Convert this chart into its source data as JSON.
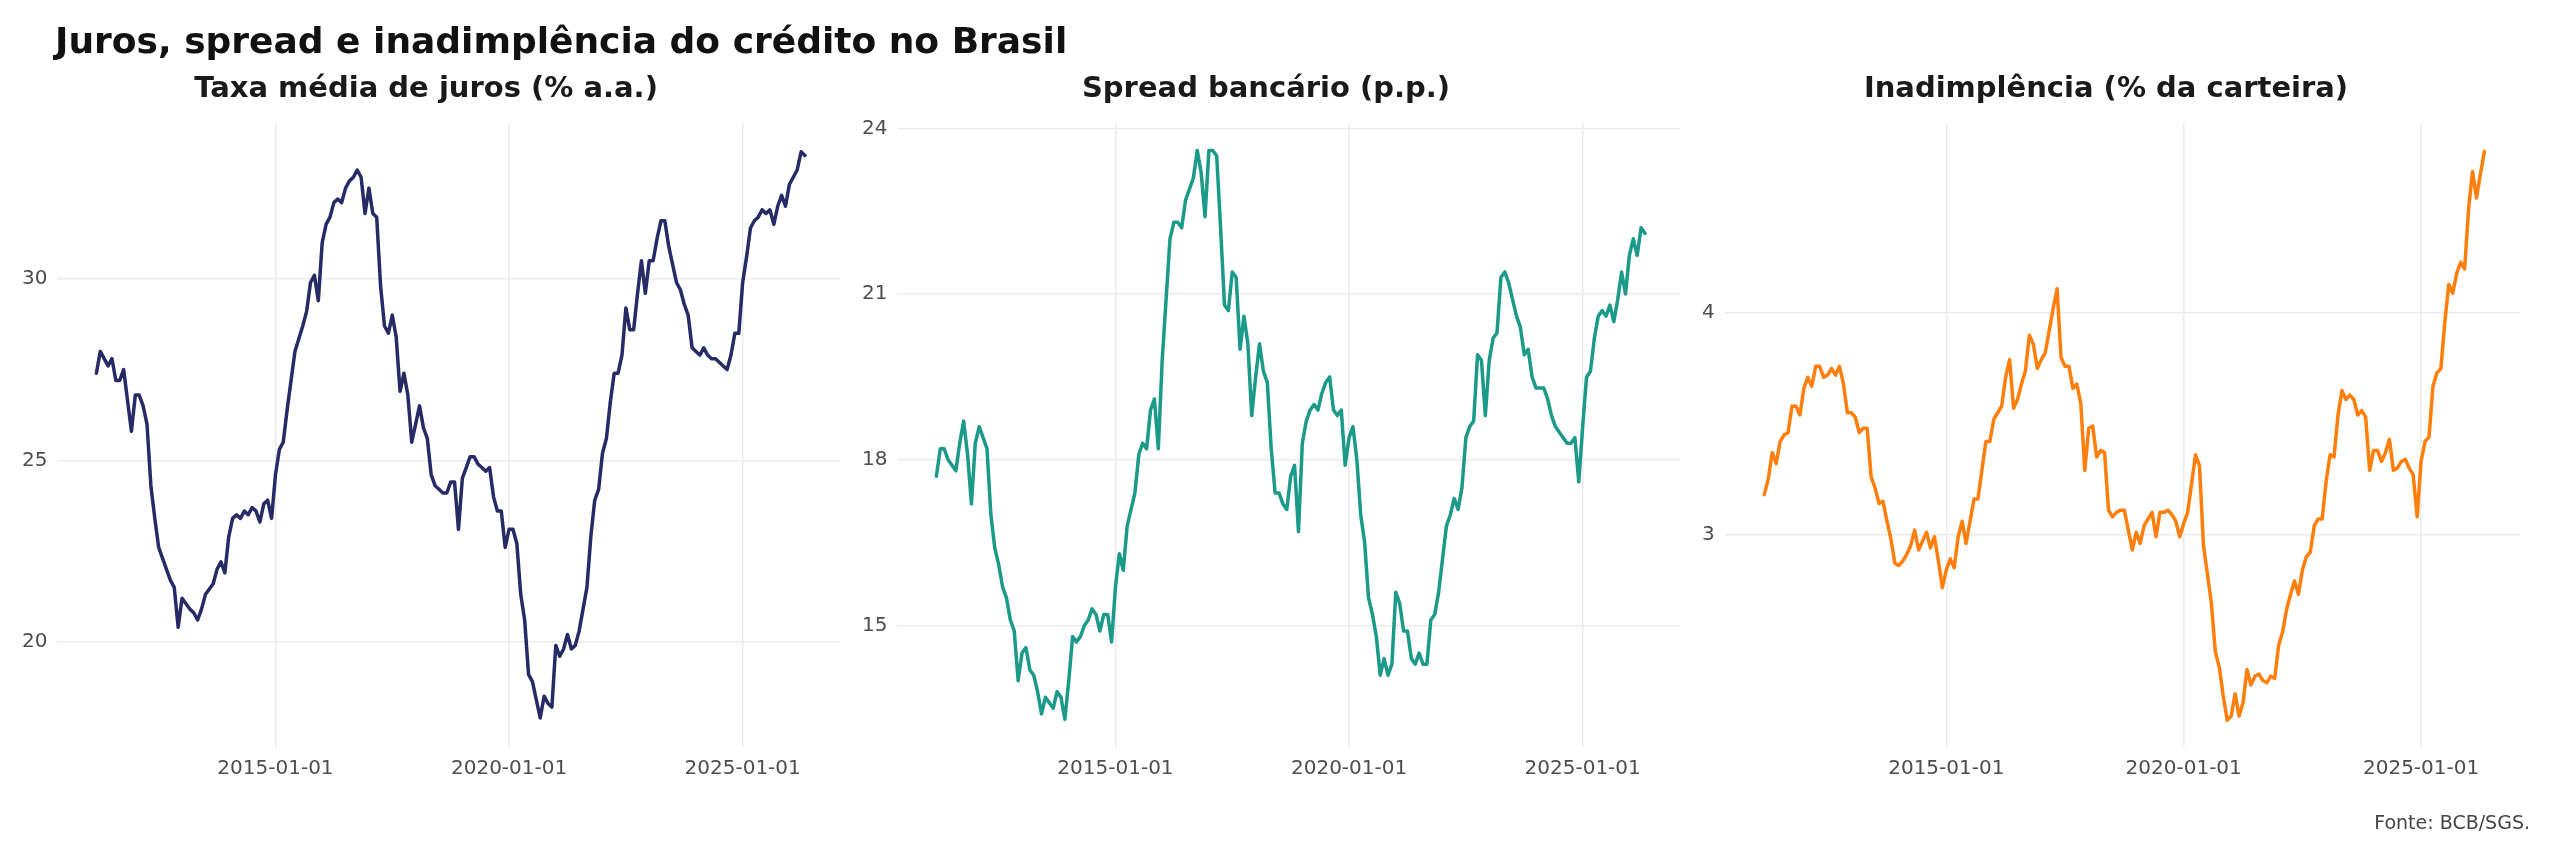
{
  "chart_data": [
    {
      "type": "line",
      "title": "Taxa média de juros (% a.a.)",
      "annotations": [
        "Juros, spread e inadimplência do crédito no Brasil"
      ],
      "xlim": [
        "2010-05",
        "2027-02"
      ],
      "xticks": [
        "2015-01-01",
        "2020-01-01",
        "2025-01-01"
      ],
      "ylim": [
        17.1,
        34.3
      ],
      "yticks": [
        20,
        25,
        30
      ],
      "grid": true,
      "x": [
        "2011-03",
        "2011-04",
        "2011-05",
        "2011-06",
        "2011-07",
        "2011-08",
        "2011-09",
        "2011-10",
        "2011-12",
        "2012-01",
        "2012-02",
        "2012-03",
        "2012-04",
        "2012-05",
        "2012-06",
        "2012-07",
        "2012-08",
        "2012-10",
        "2012-11",
        "2012-12",
        "2013-01",
        "2013-03",
        "2013-04",
        "2013-05",
        "2013-06",
        "2013-07",
        "2013-09",
        "2013-10",
        "2013-11",
        "2013-12",
        "2014-01",
        "2014-02",
        "2014-03",
        "2014-04",
        "2014-05",
        "2014-06",
        "2014-07",
        "2014-08",
        "2014-09",
        "2014-10",
        "2014-11",
        "2014-12",
        "2015-01",
        "2015-02",
        "2015-03",
        "2015-04",
        "2015-05",
        "2015-06",
        "2015-08",
        "2015-09",
        "2015-10",
        "2015-11",
        "2015-12",
        "2016-01",
        "2016-02",
        "2016-03",
        "2016-04",
        "2016-05",
        "2016-06",
        "2016-07",
        "2016-08",
        "2016-09",
        "2016-10",
        "2016-11",
        "2016-12",
        "2017-01",
        "2017-02",
        "2017-03",
        "2017-04",
        "2017-05",
        "2017-06",
        "2017-07",
        "2017-08",
        "2017-09",
        "2017-10",
        "2017-11",
        "2017-12",
        "2018-01",
        "2018-02",
        "2018-03",
        "2018-04",
        "2018-05",
        "2018-06",
        "2018-07",
        "2018-08",
        "2018-09",
        "2018-10",
        "2018-11",
        "2018-12",
        "2019-01",
        "2019-02",
        "2019-03",
        "2019-04",
        "2019-05",
        "2019-06",
        "2019-07",
        "2019-08",
        "2019-09",
        "2019-10",
        "2019-11",
        "2019-12",
        "2020-01",
        "2020-02",
        "2020-03",
        "2020-04",
        "2020-05",
        "2020-06",
        "2020-07",
        "2020-08",
        "2020-09",
        "2020-10",
        "2020-11",
        "2020-12",
        "2021-01",
        "2021-02",
        "2021-03",
        "2021-04",
        "2021-05",
        "2021-06",
        "2021-07",
        "2021-08",
        "2021-09",
        "2021-10",
        "2021-11",
        "2021-12",
        "2022-01",
        "2022-02",
        "2022-03",
        "2022-04",
        "2022-05",
        "2022-06",
        "2022-07",
        "2022-08",
        "2022-09",
        "2022-10",
        "2022-11",
        "2022-12",
        "2023-01",
        "2023-02",
        "2023-03",
        "2023-04",
        "2023-05",
        "2023-06",
        "2023-07",
        "2023-08",
        "2023-09",
        "2023-10",
        "2023-11",
        "2023-12",
        "2024-01",
        "2024-02",
        "2024-03",
        "2024-04",
        "2024-05",
        "2024-06",
        "2024-07",
        "2024-08",
        "2024-09",
        "2024-10",
        "2024-11",
        "2024-12",
        "2025-01",
        "2025-02",
        "2025-03",
        "2025-04",
        "2025-05",
        "2025-06",
        "2025-07",
        "2025-08",
        "2025-09",
        "2025-10",
        "2025-11",
        "2025-12",
        "2026-01",
        "2026-02",
        "2026-03",
        "2026-04",
        "2026-05"
      ],
      "series": [
        {
          "color": "#262b66",
          "values": [
            27.4,
            28.0,
            27.8,
            27.6,
            27.8,
            27.2,
            27.2,
            27.5,
            25.8,
            26.8,
            26.8,
            26.5,
            26.0,
            24.3,
            23.4,
            22.6,
            22.3,
            21.7,
            21.5,
            20.4,
            21.2,
            20.9,
            20.8,
            20.6,
            20.9,
            21.3,
            21.6,
            22.0,
            22.2,
            21.9,
            22.9,
            23.4,
            23.5,
            23.4,
            23.6,
            23.5,
            23.7,
            23.6,
            23.3,
            23.8,
            23.9,
            23.4,
            24.6,
            25.3,
            25.5,
            26.4,
            27.2,
            28.0,
            28.7,
            29.1,
            29.9,
            30.1,
            29.4,
            31.0,
            31.5,
            31.7,
            32.1,
            32.2,
            32.1,
            32.5,
            32.7,
            32.8,
            33.0,
            32.8,
            31.8,
            32.5,
            31.8,
            31.7,
            29.8,
            28.7,
            28.5,
            29.0,
            28.4,
            26.9,
            27.4,
            26.8,
            25.5,
            26.0,
            26.5,
            25.9,
            25.6,
            24.6,
            24.3,
            24.2,
            24.1,
            24.1,
            24.4,
            24.4,
            23.1,
            24.5,
            24.8,
            25.1,
            25.1,
            24.9,
            24.8,
            24.7,
            24.8,
            24.0,
            23.6,
            23.6,
            22.6,
            23.1,
            23.1,
            22.7,
            21.3,
            20.6,
            19.1,
            18.9,
            18.4,
            17.9,
            18.5,
            18.3,
            18.2,
            19.9,
            19.6,
            19.8,
            20.2,
            19.8,
            19.9,
            20.3,
            20.9,
            21.5,
            22.9,
            23.9,
            24.2,
            25.2,
            25.6,
            26.6,
            27.4,
            27.4,
            27.9,
            29.2,
            28.6,
            28.6,
            29.6,
            30.5,
            29.6,
            30.5,
            30.5,
            31.1,
            31.6,
            31.6,
            30.9,
            30.4,
            29.9,
            29.7,
            29.3,
            29.0,
            28.1,
            28.0,
            27.9,
            28.1,
            27.9,
            27.8,
            27.8,
            27.7,
            27.6,
            27.5,
            27.9,
            28.5,
            28.5,
            29.9,
            30.6,
            31.4,
            31.6,
            31.7,
            31.9,
            31.8,
            31.9,
            31.5,
            32.0,
            32.3,
            32.0,
            32.6,
            32.8,
            33.0,
            33.5,
            33.4
          ]
        }
      ]
    },
    {
      "type": "line",
      "title": "Spread bancário (p.p.)",
      "xlim": [
        "2010-05",
        "2027-02"
      ],
      "xticks": [
        "2015-01-01",
        "2020-01-01",
        "2025-01-01"
      ],
      "ylim": [
        12.8,
        24.1
      ],
      "yticks": [
        15,
        18,
        21,
        24
      ],
      "grid": true,
      "x": [
        "2011-03",
        "2011-04",
        "2011-05",
        "2011-06",
        "2011-07",
        "2011-08",
        "2011-09",
        "2011-10",
        "2011-11",
        "2011-12",
        "2012-01",
        "2012-02",
        "2012-03",
        "2012-04",
        "2012-05",
        "2012-06",
        "2012-07",
        "2012-08",
        "2012-09",
        "2012-10",
        "2012-11",
        "2012-12",
        "2013-01",
        "2013-02",
        "2013-03",
        "2013-04",
        "2013-05",
        "2013-06",
        "2013-07",
        "2013-08",
        "2013-09",
        "2013-10",
        "2013-11",
        "2013-12",
        "2014-01",
        "2014-02",
        "2014-03",
        "2014-04",
        "2014-05",
        "2014-06",
        "2014-07",
        "2014-08",
        "2014-09",
        "2014-10",
        "2014-11",
        "2014-12",
        "2015-01",
        "2015-02",
        "2015-03",
        "2015-04",
        "2015-05",
        "2015-06",
        "2015-07",
        "2015-08",
        "2015-09",
        "2015-10",
        "2015-11",
        "2015-12",
        "2016-01",
        "2016-02",
        "2016-03",
        "2016-04",
        "2016-05",
        "2016-06",
        "2016-07",
        "2016-08",
        "2016-09",
        "2016-10",
        "2016-11",
        "2016-12",
        "2017-01",
        "2017-02",
        "2017-03",
        "2017-04",
        "2017-05",
        "2017-06",
        "2017-07",
        "2017-08",
        "2017-09",
        "2017-10",
        "2017-11",
        "2017-12",
        "2018-01",
        "2018-02",
        "2018-03",
        "2018-04",
        "2018-05",
        "2018-06",
        "2018-07",
        "2018-08",
        "2018-09",
        "2018-10",
        "2018-11",
        "2018-12",
        "2019-01",
        "2019-02",
        "2019-03",
        "2019-04",
        "2019-05",
        "2019-06",
        "2019-07",
        "2019-08",
        "2019-09",
        "2019-10",
        "2019-11",
        "2019-12",
        "2020-01",
        "2020-02",
        "2020-03",
        "2020-04",
        "2020-05",
        "2020-06",
        "2020-07",
        "2020-08",
        "2020-09",
        "2020-10",
        "2020-11",
        "2020-12",
        "2021-01",
        "2021-02",
        "2021-03",
        "2021-04",
        "2021-05",
        "2021-06",
        "2021-07",
        "2021-08",
        "2021-09",
        "2021-10",
        "2021-11",
        "2021-12",
        "2022-01",
        "2022-02",
        "2022-03",
        "2022-04",
        "2022-05",
        "2022-06",
        "2022-07",
        "2022-08",
        "2022-09",
        "2022-10",
        "2022-11",
        "2022-12",
        "2023-01",
        "2023-02",
        "2023-03",
        "2023-04",
        "2023-05",
        "2023-06",
        "2023-07",
        "2023-08",
        "2023-09",
        "2023-10",
        "2023-11",
        "2023-12",
        "2024-01",
        "2024-02",
        "2024-03",
        "2024-04",
        "2024-05",
        "2024-06",
        "2024-07",
        "2024-08",
        "2024-09",
        "2024-10",
        "2024-11",
        "2024-12",
        "2025-01",
        "2025-02",
        "2025-03",
        "2025-04",
        "2025-05",
        "2025-06",
        "2025-07",
        "2025-08",
        "2025-09",
        "2025-10",
        "2025-11",
        "2025-12",
        "2026-01",
        "2026-02",
        "2026-03",
        "2026-04",
        "2026-05"
      ],
      "series": [
        {
          "color": "#1b9a89",
          "values": [
            17.7,
            18.2,
            18.2,
            18.0,
            17.9,
            17.8,
            18.3,
            18.7,
            18.1,
            17.2,
            18.3,
            18.6,
            18.4,
            18.2,
            17.0,
            16.4,
            16.1,
            15.7,
            15.5,
            15.1,
            14.9,
            14.0,
            14.5,
            14.6,
            14.2,
            14.1,
            13.8,
            13.4,
            13.7,
            13.6,
            13.5,
            13.8,
            13.7,
            13.3,
            14.0,
            14.8,
            14.7,
            14.8,
            15.0,
            15.1,
            15.3,
            15.2,
            14.9,
            15.2,
            15.2,
            14.7,
            15.7,
            16.3,
            16.0,
            16.8,
            17.1,
            17.4,
            18.1,
            18.3,
            18.2,
            18.9,
            19.1,
            18.2,
            19.8,
            20.9,
            22.0,
            22.3,
            22.3,
            22.2,
            22.7,
            22.9,
            23.1,
            23.6,
            23.2,
            22.4,
            23.6,
            23.6,
            23.5,
            22.2,
            20.8,
            20.7,
            21.4,
            21.3,
            20.0,
            20.6,
            20.1,
            18.8,
            19.5,
            20.1,
            19.6,
            19.4,
            18.2,
            17.4,
            17.4,
            17.2,
            17.1,
            17.7,
            17.9,
            16.7,
            18.3,
            18.7,
            18.9,
            19.0,
            18.9,
            19.2,
            19.4,
            19.5,
            18.9,
            18.8,
            18.9,
            17.9,
            18.4,
            18.6,
            18.0,
            17.0,
            16.5,
            15.5,
            15.2,
            14.8,
            14.1,
            14.4,
            14.1,
            14.3,
            15.6,
            15.4,
            14.9,
            14.9,
            14.4,
            14.3,
            14.5,
            14.3,
            14.3,
            15.1,
            15.2,
            15.6,
            16.2,
            16.8,
            17.0,
            17.3,
            17.1,
            17.5,
            18.4,
            18.6,
            18.7,
            19.9,
            19.8,
            18.8,
            19.8,
            20.2,
            20.3,
            21.3,
            21.4,
            21.2,
            20.9,
            20.6,
            20.4,
            19.9,
            20.0,
            19.5,
            19.3,
            19.3,
            19.3,
            19.1,
            18.8,
            18.6,
            18.5,
            18.4,
            18.3,
            18.3,
            18.4,
            17.6,
            18.6,
            19.5,
            19.6,
            20.2,
            20.6,
            20.7,
            20.6,
            20.8,
            20.5,
            20.9,
            21.4,
            21.0,
            21.7,
            22.0,
            21.7,
            22.2,
            22.1
          ]
        }
      ]
    },
    {
      "type": "line",
      "title": "Inadimplência (% da carteira)",
      "annotations": [
        "Fonte: BCB/SGS."
      ],
      "xlim": [
        "2010-05",
        "2027-02"
      ],
      "xticks": [
        "2015-01-01",
        "2020-01-01",
        "2025-01-01"
      ],
      "ylim": [
        2.04,
        4.86
      ],
      "yticks": [
        3,
        4
      ],
      "grid": true,
      "x": [
        "2011-03",
        "2011-04",
        "2011-05",
        "2011-06",
        "2011-07",
        "2011-08",
        "2011-09",
        "2011-10",
        "2011-11",
        "2011-12",
        "2012-01",
        "2012-02",
        "2012-03",
        "2012-04",
        "2012-05",
        "2012-06",
        "2012-07",
        "2012-08",
        "2012-09",
        "2012-10",
        "2012-11",
        "2012-12",
        "2013-01",
        "2013-02",
        "2013-03",
        "2013-04",
        "2013-05",
        "2013-06",
        "2013-07",
        "2013-08",
        "2013-09",
        "2013-10",
        "2013-11",
        "2013-12",
        "2014-01",
        "2014-02",
        "2014-03",
        "2014-04",
        "2014-05",
        "2014-06",
        "2014-07",
        "2014-08",
        "2014-09",
        "2014-10",
        "2014-11",
        "2014-12",
        "2015-01",
        "2015-02",
        "2015-03",
        "2015-04",
        "2015-05",
        "2015-06",
        "2015-07",
        "2015-08",
        "2015-09",
        "2015-10",
        "2015-11",
        "2015-12",
        "2016-01",
        "2016-02",
        "2016-03",
        "2016-04",
        "2016-05",
        "2016-06",
        "2016-07",
        "2016-08",
        "2016-09",
        "2016-10",
        "2016-11",
        "2016-12",
        "2017-01",
        "2017-02",
        "2017-03",
        "2017-04",
        "2017-05",
        "2017-06",
        "2017-07",
        "2017-08",
        "2017-09",
        "2017-10",
        "2017-11",
        "2017-12",
        "2018-01",
        "2018-02",
        "2018-03",
        "2018-04",
        "2018-05",
        "2018-06",
        "2018-07",
        "2018-08",
        "2018-09",
        "2018-10",
        "2018-11",
        "2018-12",
        "2019-01",
        "2019-02",
        "2019-03",
        "2019-04",
        "2019-05",
        "2019-06",
        "2019-07",
        "2019-08",
        "2019-09",
        "2019-10",
        "2019-11",
        "2019-12",
        "2020-01",
        "2020-02",
        "2020-03",
        "2020-04",
        "2020-05",
        "2020-06",
        "2020-07",
        "2020-08",
        "2020-09",
        "2020-10",
        "2020-11",
        "2020-12",
        "2021-01",
        "2021-02",
        "2021-03",
        "2021-04",
        "2021-05",
        "2021-06",
        "2021-07",
        "2021-08",
        "2021-09",
        "2021-10",
        "2021-11",
        "2021-12",
        "2022-01",
        "2022-02",
        "2022-03",
        "2022-04",
        "2022-05",
        "2022-06",
        "2022-07",
        "2022-08",
        "2022-09",
        "2022-10",
        "2022-11",
        "2022-12",
        "2023-01",
        "2023-02",
        "2023-03",
        "2023-04",
        "2023-05",
        "2023-06",
        "2023-07",
        "2023-08",
        "2023-09",
        "2023-10",
        "2023-11",
        "2023-12",
        "2024-01",
        "2024-02",
        "2024-03",
        "2024-04",
        "2024-05",
        "2024-06",
        "2024-07",
        "2024-08",
        "2024-09",
        "2024-10",
        "2024-11",
        "2024-12",
        "2025-01",
        "2025-02",
        "2025-03",
        "2025-04",
        "2025-05",
        "2025-06",
        "2025-07",
        "2025-08",
        "2025-09",
        "2025-10",
        "2025-11",
        "2025-12",
        "2026-01",
        "2026-02",
        "2026-03",
        "2026-04",
        "2026-05"
      ],
      "series": [
        {
          "color": "#ff7f0e",
          "values": [
            3.18,
            3.25,
            3.37,
            3.32,
            3.42,
            3.45,
            3.46,
            3.58,
            3.58,
            3.54,
            3.66,
            3.71,
            3.67,
            3.76,
            3.76,
            3.71,
            3.72,
            3.75,
            3.72,
            3.76,
            3.68,
            3.55,
            3.55,
            3.53,
            3.46,
            3.48,
            3.48,
            3.26,
            3.21,
            3.14,
            3.15,
            3.06,
            2.98,
            2.87,
            2.86,
            2.88,
            2.91,
            2.95,
            3.02,
            2.93,
            2.97,
            3.01,
            2.94,
            2.99,
            2.88,
            2.76,
            2.84,
            2.89,
            2.85,
            2.99,
            3.06,
            2.96,
            3.06,
            3.16,
            3.16,
            3.29,
            3.42,
            3.42,
            3.52,
            3.55,
            3.58,
            3.71,
            3.79,
            3.57,
            3.61,
            3.68,
            3.74,
            3.9,
            3.86,
            3.75,
            3.79,
            3.82,
            3.92,
            4.02,
            4.11,
            3.8,
            3.76,
            3.76,
            3.66,
            3.68,
            3.59,
            3.29,
            3.48,
            3.49,
            3.35,
            3.38,
            3.37,
            3.11,
            3.08,
            3.1,
            3.11,
            3.11,
            3.02,
            2.93,
            3.01,
            2.96,
            3.04,
            3.07,
            3.1,
            2.99,
            3.1,
            3.1,
            3.11,
            3.09,
            3.06,
            2.99,
            3.05,
            3.1,
            3.23,
            3.36,
            3.31,
            2.95,
            2.82,
            2.69,
            2.47,
            2.4,
            2.27,
            2.16,
            2.18,
            2.28,
            2.18,
            2.24,
            2.39,
            2.32,
            2.36,
            2.37,
            2.34,
            2.33,
            2.36,
            2.35,
            2.5,
            2.56,
            2.66,
            2.73,
            2.79,
            2.73,
            2.84,
            2.9,
            2.92,
            3.04,
            3.07,
            3.07,
            3.24,
            3.36,
            3.35,
            3.54,
            3.65,
            3.61,
            3.63,
            3.61,
            3.54,
            3.56,
            3.53,
            3.29,
            3.38,
            3.38,
            3.33,
            3.37,
            3.43,
            3.29,
            3.3,
            3.33,
            3.34,
            3.3,
            3.27,
            3.08,
            3.33,
            3.42,
            3.44,
            3.67,
            3.73,
            3.75,
            3.96,
            4.13,
            4.09,
            4.18,
            4.23,
            4.2,
            4.47,
            4.64,
            4.52,
            4.63,
            4.73
          ]
        }
      ]
    }
  ]
}
